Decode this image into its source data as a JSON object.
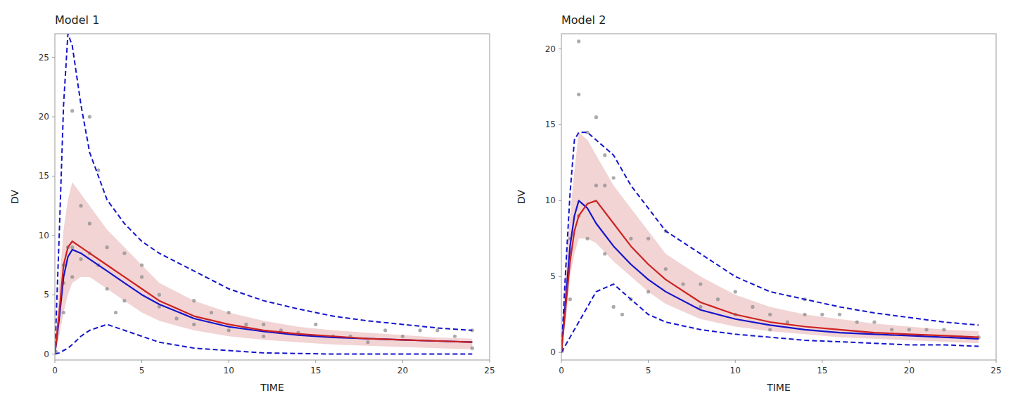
{
  "chart_data": [
    {
      "type": "line",
      "title": "Model 1",
      "x_label": "TIME",
      "y_label": "DV",
      "xlim": [
        0,
        25
      ],
      "ylim": [
        -0.5,
        27
      ],
      "xticks": [
        0,
        5,
        10,
        15,
        20,
        25
      ],
      "yticks": [
        0,
        5,
        10,
        15,
        20,
        25
      ],
      "grid": false,
      "x": [
        0.0,
        0.25,
        0.5,
        0.75,
        1.0,
        1.5,
        2.0,
        3.0,
        4.0,
        5.0,
        6.0,
        8.0,
        10.0,
        12.0,
        14.0,
        16.0,
        18.0,
        20.0,
        22.0,
        24.0
      ],
      "series": [
        {
          "type": "area",
          "color": "#e8b0b0",
          "lower": [
            0.0,
            1.5,
            3.5,
            5.0,
            6.0,
            6.5,
            6.5,
            5.5,
            4.5,
            3.5,
            2.8,
            2.0,
            1.5,
            1.2,
            1.0,
            0.8,
            0.7,
            0.6,
            0.5,
            0.4
          ],
          "values": [
            0.0,
            6.0,
            10.5,
            13.0,
            14.5,
            13.5,
            12.5,
            10.5,
            9.0,
            7.5,
            6.0,
            4.5,
            3.5,
            2.8,
            2.3,
            2.0,
            1.8,
            1.6,
            1.4,
            1.3
          ]
        },
        {
          "type": "scatter",
          "color": "#888888",
          "marker": "circle",
          "x": [
            0.05,
            0.5,
            0.5,
            0.75,
            1.0,
            1.0,
            1.5,
            1.5,
            2.0,
            2.0,
            2.5,
            2.5,
            3.0,
            3.0,
            4.0,
            4.0,
            5.0,
            5.0,
            6.0,
            6.0,
            7.0,
            8.0,
            8.0,
            9.0,
            10.0,
            10.0,
            11.0,
            12.0,
            12.0,
            13.0,
            14.0,
            15.0,
            16.0,
            17.0,
            18.0,
            19.0,
            20.0,
            21.0,
            22.0,
            23.0,
            24.0,
            24.0,
            0.5,
            1.0,
            2.0,
            3.5
          ],
          "values": [
            0.2,
            7.5,
            6.0,
            9.0,
            20.5,
            9.0,
            12.5,
            8.0,
            20.0,
            8.5,
            15.5,
            7.5,
            9.0,
            5.5,
            8.5,
            4.5,
            7.5,
            6.5,
            5.0,
            4.0,
            3.0,
            2.5,
            4.5,
            3.5,
            2.0,
            3.5,
            2.5,
            1.5,
            2.5,
            2.0,
            1.8,
            2.5,
            1.5,
            1.5,
            1.0,
            2.0,
            1.5,
            2.0,
            2.0,
            1.5,
            2.0,
            0.5,
            3.5,
            6.5,
            11.0,
            3.5
          ]
        },
        {
          "type": "line",
          "color": "#1515cc",
          "line_style": "dashed",
          "values": [
            0.0,
            0.1,
            0.3,
            0.5,
            0.8,
            1.5,
            2.0,
            2.5,
            2.0,
            1.5,
            1.0,
            0.5,
            0.3,
            0.1,
            0.05,
            0.0,
            0.0,
            0.0,
            0.0,
            0.0
          ]
        },
        {
          "type": "line",
          "color": "#1515cc",
          "line_style": "dashed",
          "values": [
            0.0,
            10.0,
            21.0,
            27.0,
            26.0,
            21.0,
            17.0,
            13.0,
            11.0,
            9.5,
            8.5,
            7.0,
            5.5,
            4.5,
            3.8,
            3.2,
            2.8,
            2.5,
            2.2,
            2.0
          ]
        },
        {
          "type": "line",
          "color": "#1515cc",
          "line_style": "solid",
          "values": [
            0.0,
            3.0,
            6.5,
            8.2,
            8.8,
            8.5,
            8.0,
            7.0,
            6.0,
            5.0,
            4.2,
            3.0,
            2.3,
            1.9,
            1.6,
            1.4,
            1.3,
            1.2,
            1.1,
            1.0
          ]
        },
        {
          "type": "line",
          "color": "#cc2222",
          "line_style": "solid",
          "values": [
            0.0,
            3.5,
            7.5,
            9.0,
            9.5,
            9.0,
            8.5,
            7.5,
            6.5,
            5.5,
            4.5,
            3.2,
            2.5,
            2.0,
            1.7,
            1.5,
            1.3,
            1.2,
            1.1,
            1.0
          ]
        }
      ]
    },
    {
      "type": "line",
      "title": "Model 2",
      "x_label": "TIME",
      "y_label": "DV",
      "xlim": [
        0,
        25
      ],
      "ylim": [
        -0.5,
        21
      ],
      "xticks": [
        0,
        5,
        10,
        15,
        20,
        25
      ],
      "yticks": [
        0,
        5,
        10,
        15,
        20
      ],
      "grid": false,
      "x": [
        0.0,
        0.25,
        0.5,
        0.75,
        1.0,
        1.5,
        2.0,
        3.0,
        4.0,
        5.0,
        6.0,
        8.0,
        10.0,
        12.0,
        14.0,
        16.0,
        18.0,
        20.0,
        22.0,
        24.0
      ],
      "series": [
        {
          "type": "area",
          "color": "#e8b0b0",
          "lower": [
            0.0,
            2.0,
            5.0,
            6.5,
            7.5,
            7.5,
            7.2,
            6.0,
            5.0,
            4.0,
            3.2,
            2.2,
            1.7,
            1.4,
            1.2,
            1.0,
            0.9,
            0.8,
            0.7,
            0.6
          ],
          "values": [
            0.0,
            6.0,
            9.0,
            12.0,
            14.5,
            14.0,
            13.0,
            11.0,
            9.5,
            8.0,
            6.5,
            5.0,
            3.8,
            3.0,
            2.5,
            2.2,
            1.9,
            1.7,
            1.5,
            1.4
          ]
        },
        {
          "type": "scatter",
          "color": "#888888",
          "marker": "circle",
          "x": [
            0.05,
            0.5,
            0.5,
            1.0,
            1.0,
            1.5,
            1.5,
            2.0,
            2.0,
            2.5,
            2.5,
            3.0,
            3.0,
            3.5,
            4.0,
            4.0,
            5.0,
            5.0,
            6.0,
            6.0,
            7.0,
            8.0,
            8.0,
            9.0,
            10.0,
            10.0,
            11.0,
            12.0,
            12.0,
            13.0,
            14.0,
            14.0,
            15.0,
            16.0,
            17.0,
            18.0,
            19.0,
            20.0,
            21.0,
            22.0,
            23.0,
            24.0,
            1.0,
            2.5
          ],
          "values": [
            0.1,
            7.5,
            3.5,
            20.5,
            9.0,
            14.5,
            7.5,
            15.5,
            11.0,
            13.0,
            11.0,
            11.5,
            3.0,
            2.5,
            7.5,
            3.5,
            7.5,
            4.0,
            8.0,
            5.5,
            4.5,
            3.0,
            4.5,
            3.5,
            2.5,
            4.0,
            3.0,
            2.5,
            1.5,
            2.0,
            2.5,
            3.5,
            2.5,
            2.5,
            2.0,
            2.0,
            1.5,
            1.5,
            1.5,
            1.5,
            1.0,
            1.0,
            17.0,
            6.5
          ]
        },
        {
          "type": "line",
          "color": "#1515cc",
          "line_style": "dashed",
          "values": [
            0.0,
            0.5,
            1.0,
            1.5,
            2.0,
            3.0,
            4.0,
            4.5,
            3.5,
            2.5,
            2.0,
            1.5,
            1.2,
            1.0,
            0.8,
            0.7,
            0.6,
            0.5,
            0.5,
            0.4
          ]
        },
        {
          "type": "line",
          "color": "#1515cc",
          "line_style": "dashed",
          "values": [
            0.0,
            5.5,
            10.5,
            14.0,
            14.5,
            14.5,
            14.0,
            13.0,
            11.0,
            9.5,
            8.0,
            6.5,
            5.0,
            4.0,
            3.5,
            3.0,
            2.6,
            2.3,
            2.0,
            1.8
          ]
        },
        {
          "type": "line",
          "color": "#1515cc",
          "line_style": "solid",
          "values": [
            0.0,
            3.5,
            7.0,
            9.0,
            10.0,
            9.5,
            8.5,
            7.0,
            5.8,
            4.8,
            4.0,
            2.8,
            2.2,
            1.8,
            1.5,
            1.3,
            1.2,
            1.1,
            1.0,
            0.9
          ]
        },
        {
          "type": "line",
          "color": "#cc2222",
          "line_style": "solid",
          "values": [
            0.0,
            3.0,
            6.0,
            8.0,
            9.0,
            9.8,
            10.0,
            8.5,
            7.0,
            5.8,
            4.8,
            3.3,
            2.5,
            2.0,
            1.7,
            1.5,
            1.3,
            1.2,
            1.1,
            1.0
          ]
        }
      ]
    }
  ]
}
